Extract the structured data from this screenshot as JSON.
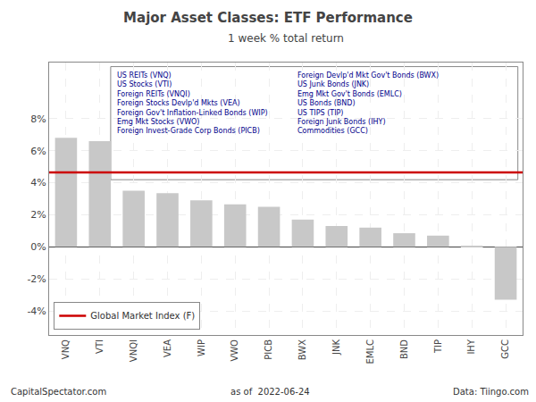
{
  "chart_data": {
    "type": "bar",
    "title": "Major Asset Classes: ETF Performance",
    "subtitle": "1 week % total return",
    "categories": [
      "VNQ",
      "VTI",
      "VNQI",
      "VEA",
      "WIP",
      "VWO",
      "PICB",
      "BWX",
      "JNK",
      "EMLC",
      "BND",
      "TIP",
      "IHY",
      "GCC"
    ],
    "values": [
      6.8,
      6.6,
      3.5,
      3.35,
      2.9,
      2.65,
      2.5,
      1.7,
      1.3,
      1.2,
      0.85,
      0.7,
      0.05,
      -3.3
    ],
    "color": "#c8c8c8",
    "ylim": [
      -5.5,
      11.5
    ],
    "yticks": [
      {
        "value": -4,
        "label": "-4%"
      },
      {
        "value": -2,
        "label": "-2%"
      },
      {
        "value": 0,
        "label": "0%"
      },
      {
        "value": 2,
        "label": "2%"
      },
      {
        "value": 4,
        "label": "4%"
      },
      {
        "value": 6,
        "label": "6%"
      },
      {
        "value": 8,
        "label": "8%"
      }
    ],
    "grid": true,
    "legend": "lower left",
    "reference_line": {
      "name": "Global Market Index (F)",
      "value": 4.65,
      "color": "#cc0000"
    },
    "annotations": {
      "left": [
        "US REITs (VNQ)",
        "US Stocks (VTI)",
        "Foreign REITs (VNQI)",
        "Foreign Stocks Devlp'd Mkts (VEA)",
        "Foreign Gov't Inflation-Linked Bonds (WIP)",
        "Emg Mkt Stocks (VWO)",
        "Foreign Invest-Grade Corp Bonds (PICB)"
      ],
      "right": [
        "Foreign Devlp'd Mkt Gov't Bonds (BWX)",
        "US Junk Bonds (JNK)",
        "Emg Mkt Gov't Bonds (EMLC)",
        "US Bonds (BND)",
        "US TIPS (TIP)",
        "Foreign Junk Bonds (IHY)",
        "Commodities (GCC)"
      ],
      "color": "#00008b"
    },
    "footer": {
      "left": "CapitalSpectator.com",
      "center": "as of  2022-06-24",
      "right": "Data: Tiingo.com"
    }
  }
}
